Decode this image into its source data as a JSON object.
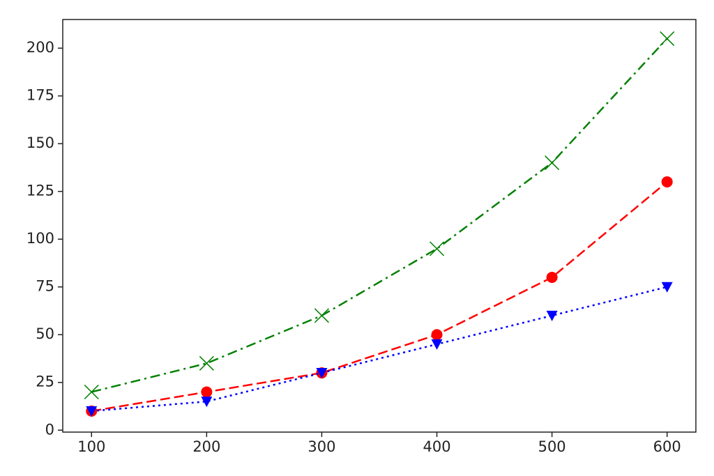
{
  "chart_data": {
    "type": "line",
    "x": [
      100,
      200,
      300,
      400,
      500,
      600
    ],
    "series": [
      {
        "color": "#ff0000",
        "linestyle": "dashed",
        "marker": "circle",
        "values": [
          10,
          20,
          30,
          50,
          80,
          130
        ]
      },
      {
        "color": "#0000ff",
        "linestyle": "dotted",
        "marker": "triangle-down",
        "values": [
          10,
          15,
          30,
          45,
          60,
          75
        ]
      },
      {
        "color": "#008000",
        "linestyle": "dashdot",
        "marker": "x",
        "values": [
          20,
          35,
          60,
          95,
          140,
          205
        ]
      }
    ],
    "xlim": [
      75,
      625
    ],
    "xticks": [
      100,
      200,
      300,
      400,
      500,
      600
    ],
    "ylim": [
      -1,
      215
    ],
    "yticks": [
      0,
      25,
      50,
      75,
      100,
      125,
      150,
      175,
      200
    ],
    "grid": false
  }
}
